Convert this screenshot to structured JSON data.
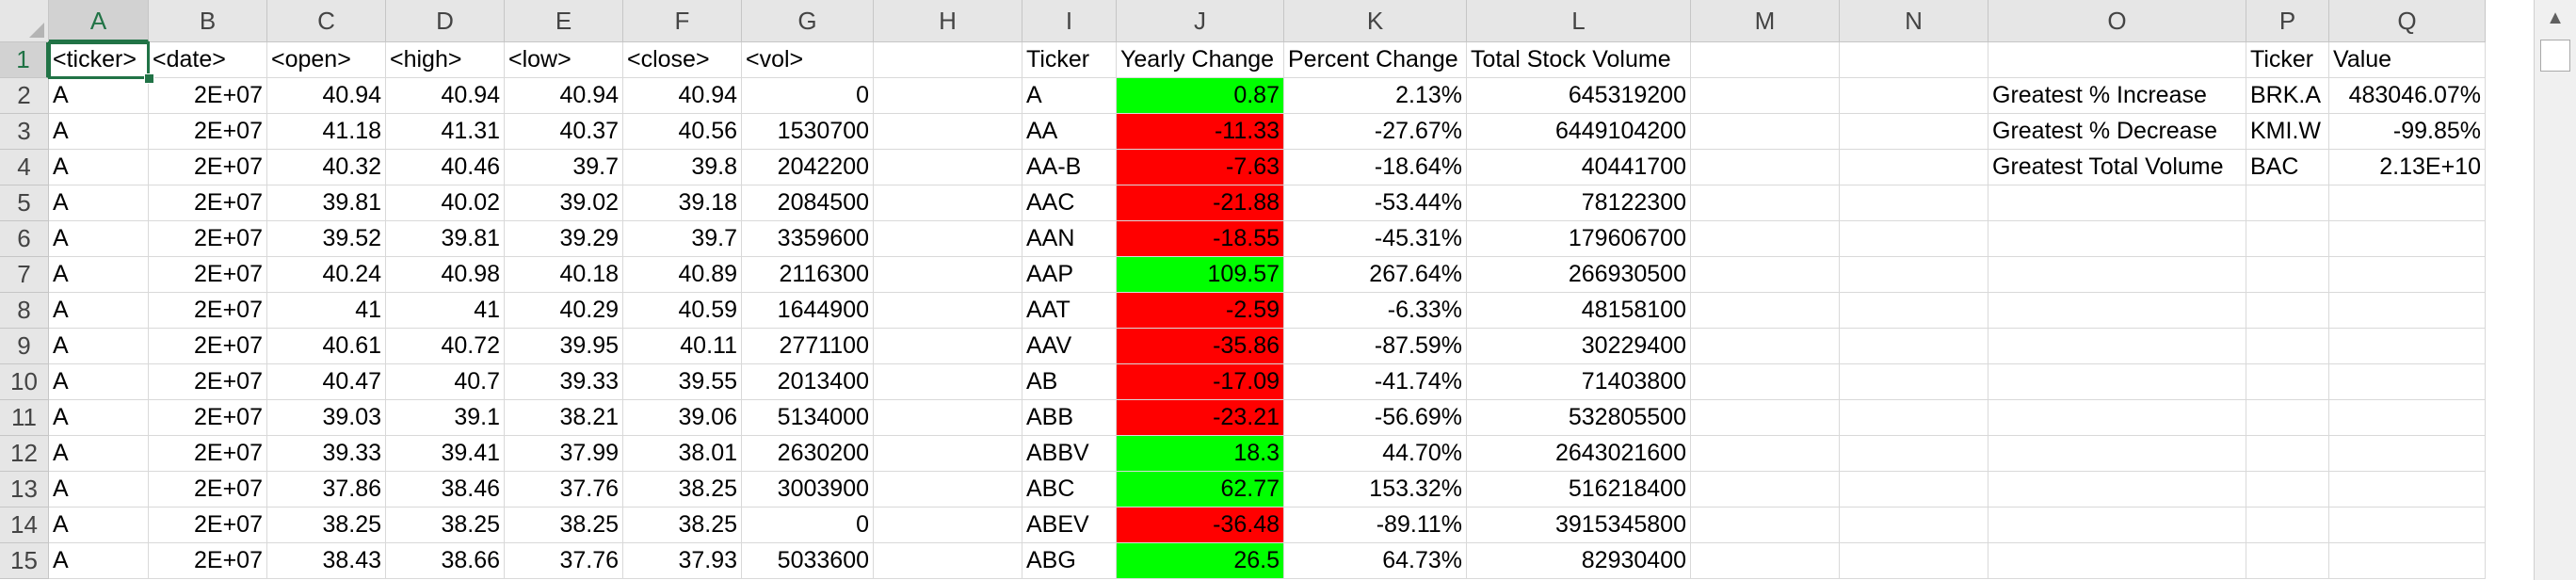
{
  "columns": [
    "A",
    "B",
    "C",
    "D",
    "E",
    "F",
    "G",
    "H",
    "I",
    "J",
    "K",
    "L",
    "M",
    "N",
    "O",
    "P",
    "Q"
  ],
  "rows": [
    "1",
    "2",
    "3",
    "4",
    "5",
    "6",
    "7",
    "8",
    "9",
    "10",
    "11",
    "12",
    "13",
    "14",
    "15"
  ],
  "selected_cell": "A1",
  "raw_data": {
    "headers": [
      "<ticker>",
      "<date>",
      "<open>",
      "<high>",
      "<low>",
      "<close>",
      "<vol>"
    ],
    "rows": [
      [
        "A",
        "2E+07",
        "40.94",
        "40.94",
        "40.94",
        "40.94",
        "0"
      ],
      [
        "A",
        "2E+07",
        "41.18",
        "41.31",
        "40.37",
        "40.56",
        "1530700"
      ],
      [
        "A",
        "2E+07",
        "40.32",
        "40.46",
        "39.7",
        "39.8",
        "2042200"
      ],
      [
        "A",
        "2E+07",
        "39.81",
        "40.02",
        "39.02",
        "39.18",
        "2084500"
      ],
      [
        "A",
        "2E+07",
        "39.52",
        "39.81",
        "39.29",
        "39.7",
        "3359600"
      ],
      [
        "A",
        "2E+07",
        "40.24",
        "40.98",
        "40.18",
        "40.89",
        "2116300"
      ],
      [
        "A",
        "2E+07",
        "41",
        "41",
        "40.29",
        "40.59",
        "1644900"
      ],
      [
        "A",
        "2E+07",
        "40.61",
        "40.72",
        "39.95",
        "40.11",
        "2771100"
      ],
      [
        "A",
        "2E+07",
        "40.47",
        "40.7",
        "39.33",
        "39.55",
        "2013400"
      ],
      [
        "A",
        "2E+07",
        "39.03",
        "39.1",
        "38.21",
        "39.06",
        "5134000"
      ],
      [
        "A",
        "2E+07",
        "39.33",
        "39.41",
        "37.99",
        "38.01",
        "2630200"
      ],
      [
        "A",
        "2E+07",
        "37.86",
        "38.46",
        "37.76",
        "38.25",
        "3003900"
      ],
      [
        "A",
        "2E+07",
        "38.25",
        "38.25",
        "38.25",
        "38.25",
        "0"
      ],
      [
        "A",
        "2E+07",
        "38.43",
        "38.66",
        "37.76",
        "37.93",
        "5033600"
      ]
    ]
  },
  "summary": {
    "headers": [
      "Ticker",
      "Yearly Change",
      "Percent Change",
      "Total Stock Volume"
    ],
    "rows": [
      {
        "ticker": "A",
        "yearly_change": "0.87",
        "status": "positive",
        "percent_change": "2.13%",
        "total_volume": "645319200"
      },
      {
        "ticker": "AA",
        "yearly_change": "-11.33",
        "status": "negative",
        "percent_change": "-27.67%",
        "total_volume": "6449104200"
      },
      {
        "ticker": "AA-B",
        "yearly_change": "-7.63",
        "status": "negative",
        "percent_change": "-18.64%",
        "total_volume": "40441700"
      },
      {
        "ticker": "AAC",
        "yearly_change": "-21.88",
        "status": "negative",
        "percent_change": "-53.44%",
        "total_volume": "78122300"
      },
      {
        "ticker": "AAN",
        "yearly_change": "-18.55",
        "status": "negative",
        "percent_change": "-45.31%",
        "total_volume": "179606700"
      },
      {
        "ticker": "AAP",
        "yearly_change": "109.57",
        "status": "positive",
        "percent_change": "267.64%",
        "total_volume": "266930500"
      },
      {
        "ticker": "AAT",
        "yearly_change": "-2.59",
        "status": "negative",
        "percent_change": "-6.33%",
        "total_volume": "48158100"
      },
      {
        "ticker": "AAV",
        "yearly_change": "-35.86",
        "status": "negative",
        "percent_change": "-87.59%",
        "total_volume": "30229400"
      },
      {
        "ticker": "AB",
        "yearly_change": "-17.09",
        "status": "negative",
        "percent_change": "-41.74%",
        "total_volume": "71403800"
      },
      {
        "ticker": "ABB",
        "yearly_change": "-23.21",
        "status": "negative",
        "percent_change": "-56.69%",
        "total_volume": "532805500"
      },
      {
        "ticker": "ABBV",
        "yearly_change": "18.3",
        "status": "positive",
        "percent_change": "44.70%",
        "total_volume": "2643021600"
      },
      {
        "ticker": "ABC",
        "yearly_change": "62.77",
        "status": "positive",
        "percent_change": "153.32%",
        "total_volume": "516218400"
      },
      {
        "ticker": "ABEV",
        "yearly_change": "-36.48",
        "status": "negative",
        "percent_change": "-89.11%",
        "total_volume": "3915345800"
      },
      {
        "ticker": "ABG",
        "yearly_change": "26.5",
        "status": "positive",
        "percent_change": "64.73%",
        "total_volume": "82930400"
      }
    ]
  },
  "greatest": {
    "headers": [
      "Ticker",
      "Value"
    ],
    "rows": [
      {
        "label": "Greatest % Increase",
        "ticker": "BRK.A",
        "value": "483046.07%"
      },
      {
        "label": "Greatest % Decrease",
        "ticker": "KMI.W",
        "value": "-99.85%"
      },
      {
        "label": "Greatest Total Volume",
        "ticker": "BAC",
        "value": "2.13E+10"
      }
    ]
  },
  "colors": {
    "positive": "#00ff00",
    "negative": "#ff0000",
    "selection": "#217346"
  },
  "icons": {
    "scroll_up": "scroll-up-arrow-icon",
    "select_all": "select-all-icon"
  },
  "scroll_up_glyph": "▲"
}
